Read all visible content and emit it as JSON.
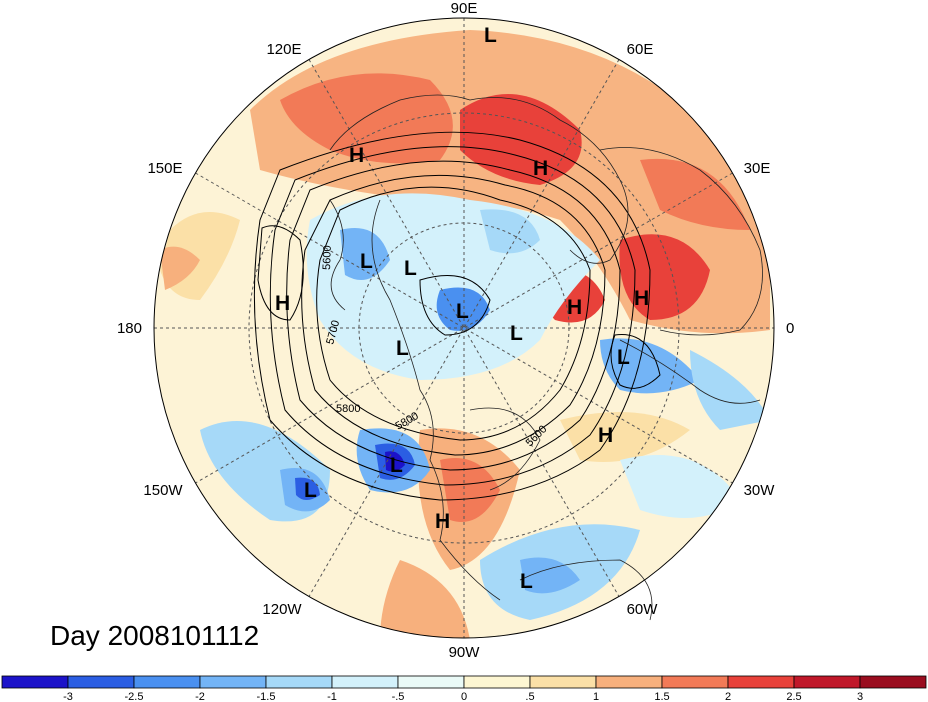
{
  "title": "Day 2008101112",
  "projection": "polar-stereographic-north",
  "longitude_labels": [
    "90E",
    "60E",
    "30E",
    "0",
    "30W",
    "60W",
    "90W",
    "120W",
    "150W",
    "180",
    "150E",
    "120E"
  ],
  "pressure_systems": [
    {
      "label": "L",
      "name": "low-east-siberia"
    },
    {
      "label": "H",
      "name": "high-east-asia"
    },
    {
      "label": "H",
      "name": "high-central-asia"
    },
    {
      "label": "H",
      "name": "high-bering"
    },
    {
      "label": "L",
      "name": "low-chukchi"
    },
    {
      "label": "L",
      "name": "low-beaufort"
    },
    {
      "label": "L",
      "name": "low-pole"
    },
    {
      "label": "L",
      "name": "low-greenland-north"
    },
    {
      "label": "L",
      "name": "low-canada"
    },
    {
      "label": "H",
      "name": "high-north-sea"
    },
    {
      "label": "H",
      "name": "high-eastern-europe"
    },
    {
      "label": "L",
      "name": "low-atlantic-east"
    },
    {
      "label": "H",
      "name": "high-atlantic-central"
    },
    {
      "label": "L",
      "name": "low-gulf-of-alaska"
    },
    {
      "label": "L",
      "name": "low-north-pacific"
    },
    {
      "label": "H",
      "name": "high-usa"
    },
    {
      "label": "L",
      "name": "low-caribbean"
    }
  ],
  "contour_labels": [
    "5600",
    "5700",
    "5800",
    "5800",
    "5600"
  ],
  "colorbar": {
    "tick_labels": [
      "-3",
      "-2.5",
      "-2",
      "-1.5",
      "-1",
      "-.5",
      "0",
      ".5",
      "1",
      "1.5",
      "2",
      "2.5",
      "3"
    ],
    "colors": [
      "#1c13c9",
      "#2b5ee3",
      "#4a90f0",
      "#73b4f6",
      "#a6d9f8",
      "#d3f1fb",
      "#eafaf7",
      "#fdf6d2",
      "#fbe0a7",
      "#f7b07d",
      "#f27a57",
      "#e8413a",
      "#c0182a",
      "#9a0d1f"
    ]
  }
}
